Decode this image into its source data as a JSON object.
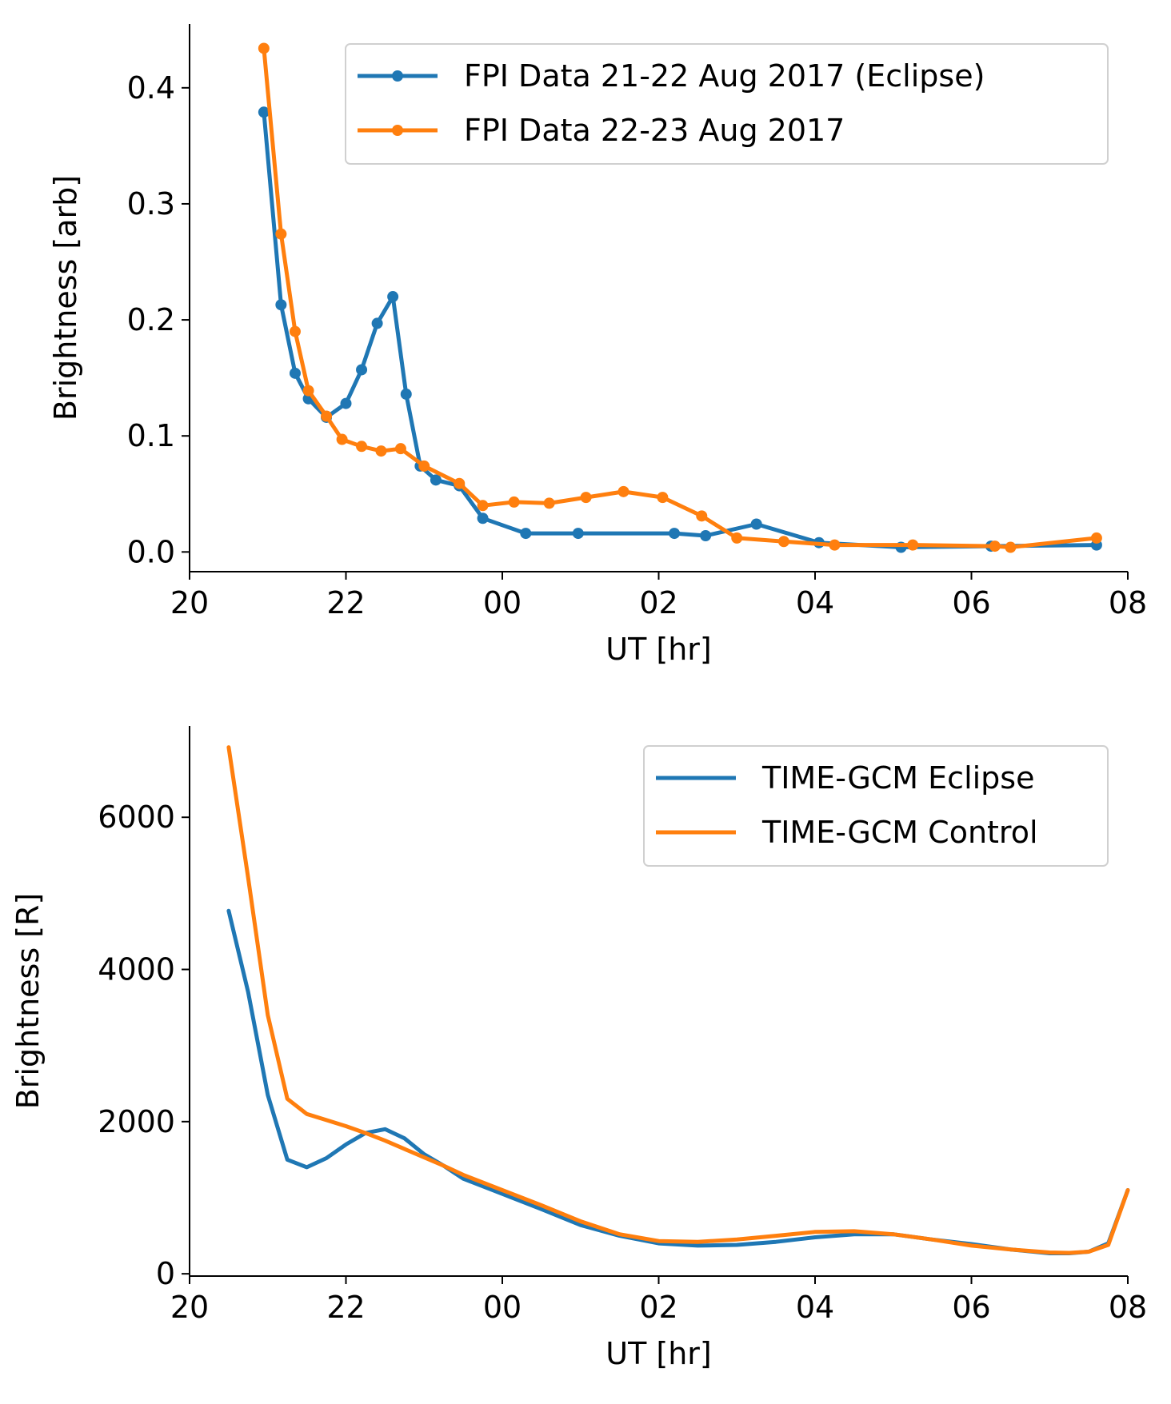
{
  "chart_data": [
    {
      "type": "line",
      "xlabel": "UT [hr]",
      "ylabel": "Brightness [arb]",
      "xlim": [
        20,
        32
      ],
      "ylim": [
        -0.017,
        0.455
      ],
      "xticks": [
        20,
        22,
        24,
        26,
        28,
        30,
        32
      ],
      "xtick_labels": [
        "20",
        "22",
        "00",
        "02",
        "04",
        "06",
        "08"
      ],
      "yticks": [
        0.0,
        0.1,
        0.2,
        0.3,
        0.4
      ],
      "ytick_labels": [
        "0.0",
        "0.1",
        "0.2",
        "0.3",
        "0.4"
      ],
      "grid": false,
      "legend_position": "top-right",
      "series": [
        {
          "name": "FPI Data 21-22 Aug 2017 (Eclipse)",
          "color": "#1f77b4",
          "marker": "dot",
          "x": [
            20.95,
            21.17,
            21.35,
            21.52,
            21.75,
            22.0,
            22.2,
            22.4,
            22.6,
            22.77,
            22.95,
            23.15,
            23.45,
            23.75,
            24.3,
            24.97,
            26.2,
            26.6,
            27.25,
            28.05,
            29.1,
            30.25,
            31.6
          ],
          "y": [
            0.379,
            0.213,
            0.154,
            0.132,
            0.116,
            0.128,
            0.157,
            0.197,
            0.22,
            0.136,
            0.074,
            0.062,
            0.057,
            0.029,
            0.016,
            0.016,
            0.016,
            0.014,
            0.024,
            0.008,
            0.004,
            0.005,
            0.006
          ]
        },
        {
          "name": "FPI Data 22-23 Aug 2017",
          "color": "#ff7f0e",
          "marker": "dot",
          "x": [
            20.95,
            21.17,
            21.35,
            21.52,
            21.75,
            21.95,
            22.2,
            22.45,
            22.7,
            23.0,
            23.45,
            23.75,
            24.15,
            24.6,
            25.07,
            25.55,
            26.05,
            26.55,
            27.0,
            27.6,
            28.25,
            29.25,
            30.3,
            30.5,
            31.6
          ],
          "y": [
            0.434,
            0.274,
            0.19,
            0.139,
            0.117,
            0.097,
            0.091,
            0.087,
            0.089,
            0.074,
            0.059,
            0.04,
            0.043,
            0.042,
            0.047,
            0.052,
            0.047,
            0.031,
            0.012,
            0.009,
            0.006,
            0.006,
            0.005,
            0.004,
            0.012
          ]
        }
      ]
    },
    {
      "type": "line",
      "xlabel": "UT [hr]",
      "ylabel": "Brightness [R]",
      "xlim": [
        20,
        32
      ],
      "ylim": [
        -30,
        7200
      ],
      "xticks": [
        20,
        22,
        24,
        26,
        28,
        30,
        32
      ],
      "xtick_labels": [
        "20",
        "22",
        "00",
        "02",
        "04",
        "06",
        "08"
      ],
      "yticks": [
        0,
        2000,
        4000,
        6000
      ],
      "ytick_labels": [
        "0",
        "2000",
        "4000",
        "6000"
      ],
      "grid": false,
      "legend_position": "top-right",
      "series": [
        {
          "name": "TIME-GCM Eclipse",
          "color": "#1f77b4",
          "x": [
            20.5,
            20.75,
            21.0,
            21.25,
            21.5,
            21.75,
            22.0,
            22.25,
            22.5,
            22.75,
            23.0,
            23.25,
            23.5,
            23.75,
            24.0,
            24.5,
            25.0,
            25.5,
            26.0,
            26.5,
            27.0,
            27.5,
            28.0,
            28.5,
            29.0,
            29.5,
            30.0,
            30.5,
            31.0,
            31.25,
            31.5,
            31.75,
            32.0
          ],
          "y": [
            4770,
            3700,
            2350,
            1500,
            1400,
            1520,
            1700,
            1850,
            1900,
            1780,
            1570,
            1420,
            1250,
            1150,
            1050,
            850,
            640,
            500,
            400,
            370,
            380,
            420,
            480,
            520,
            520,
            450,
            390,
            320,
            270,
            270,
            290,
            400,
            1100
          ]
        },
        {
          "name": "TIME-GCM Control",
          "color": "#ff7f0e",
          "x": [
            20.5,
            20.75,
            21.0,
            21.25,
            21.5,
            21.75,
            22.0,
            22.25,
            22.5,
            22.75,
            23.0,
            23.25,
            23.5,
            23.75,
            24.0,
            24.5,
            25.0,
            25.5,
            26.0,
            26.5,
            27.0,
            27.5,
            28.0,
            28.5,
            29.0,
            29.5,
            30.0,
            30.5,
            31.0,
            31.25,
            31.5,
            31.75,
            32.0
          ],
          "y": [
            6920,
            5200,
            3400,
            2300,
            2100,
            2020,
            1940,
            1850,
            1750,
            1640,
            1530,
            1420,
            1300,
            1200,
            1100,
            900,
            690,
            520,
            430,
            420,
            450,
            500,
            550,
            560,
            520,
            450,
            370,
            320,
            280,
            275,
            290,
            380,
            1100
          ]
        }
      ]
    }
  ]
}
